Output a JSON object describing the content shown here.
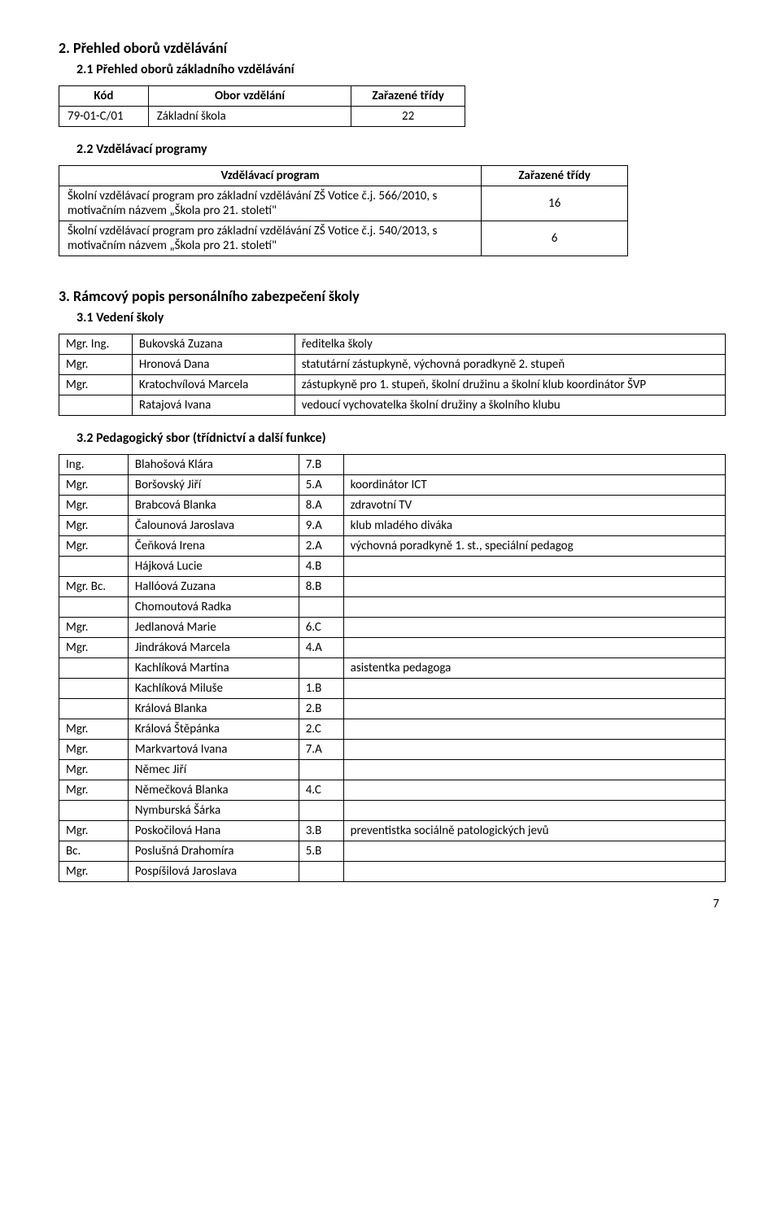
{
  "s2": {
    "heading": "2.  Přehled oborů vzdělávání",
    "s2_1": {
      "heading": "2.1 Přehled oborů základního vzdělávání",
      "table": {
        "headers": [
          "Kód",
          "Obor vzdělání",
          "Zařazené třídy"
        ],
        "rows": [
          [
            "79-01-C/01",
            "Základní škola",
            "22"
          ]
        ]
      }
    },
    "s2_2": {
      "heading": "2.2 Vzdělávací programy",
      "table": {
        "headers": [
          "Vzdělávací program",
          "Zařazené třídy"
        ],
        "rows": [
          [
            "Školní vzdělávací program pro základní vzdělávání ZŠ Votice č.j. 566/2010, s motivačním názvem „Škola pro 21. století\"",
            "16"
          ],
          [
            "Školní vzdělávací program pro základní vzdělávání ZŠ Votice č.j. 540/2013, s motivačním názvem „Škola pro 21. století\"",
            "6"
          ]
        ]
      }
    }
  },
  "s3": {
    "heading": "3.  Rámcový popis personálního zabezpečení školy",
    "s3_1": {
      "heading": "3.1 Vedení školy",
      "rows": [
        [
          "Mgr. Ing.",
          "Bukovská Zuzana",
          "ředitelka školy"
        ],
        [
          "Mgr.",
          "Hronová Dana",
          "statutární zástupkyně, výchovná poradkyně 2. stupeň"
        ],
        [
          "Mgr.",
          "Kratochvílová Marcela",
          "zástupkyně pro 1. stupeň, školní družinu a školní klub koordinátor ŠVP"
        ],
        [
          "",
          "Ratajová Ivana",
          "vedoucí vychovatelka školní družiny a školního klubu"
        ]
      ]
    },
    "s3_2": {
      "heading": "3.2 Pedagogický sbor (třídnictví a další funkce)",
      "rows": [
        [
          "Ing.",
          "Blahošová Klára",
          "7.B",
          ""
        ],
        [
          "Mgr.",
          "Boršovský Jiří",
          "5.A",
          "koordinátor ICT"
        ],
        [
          "Mgr.",
          "Brabcová Blanka",
          "8.A",
          "zdravotní TV"
        ],
        [
          "Mgr.",
          "Čalounová Jaroslava",
          "9.A",
          "klub mladého diváka"
        ],
        [
          "Mgr.",
          "Čeňková Irena",
          "2.A",
          "výchovná poradkyně 1. st., speciální pedagog"
        ],
        [
          "",
          "Hájková Lucie",
          "4.B",
          ""
        ],
        [
          "Mgr. Bc.",
          "Hallóová Zuzana",
          "8.B",
          ""
        ],
        [
          "",
          "Chomoutová Radka",
          "",
          ""
        ],
        [
          "Mgr.",
          "Jedlanová Marie",
          "6.C",
          ""
        ],
        [
          "Mgr.",
          "Jindráková Marcela",
          "4.A",
          ""
        ],
        [
          "",
          "Kachlíková Martina",
          "",
          "asistentka pedagoga"
        ],
        [
          "",
          "Kachlíková Miluše",
          "1.B",
          ""
        ],
        [
          "",
          "Králová Blanka",
          "2.B",
          ""
        ],
        [
          "Mgr.",
          "Králová Štěpánka",
          "2.C",
          ""
        ],
        [
          "Mgr.",
          "Markvartová Ivana",
          "7.A",
          ""
        ],
        [
          "Mgr.",
          "Němec Jiří",
          "",
          ""
        ],
        [
          "Mgr.",
          "Němečková Blanka",
          "4.C",
          ""
        ],
        [
          "",
          "Nymburská Šárka",
          "",
          ""
        ],
        [
          "Mgr.",
          "Poskočilová Hana",
          "3.B",
          "preventistka sociálně patologických jevů"
        ],
        [
          "Bc.",
          "Poslušná Drahomíra",
          "5.B",
          ""
        ],
        [
          "Mgr.",
          "Pospíšilová Jaroslava",
          "",
          ""
        ]
      ]
    }
  },
  "page_number": "7"
}
